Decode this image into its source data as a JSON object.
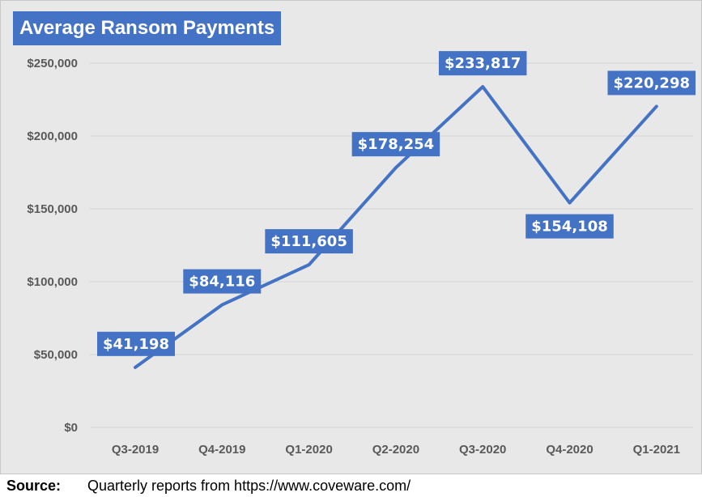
{
  "chart_data": {
    "type": "line",
    "title": "Average Ransom Payments",
    "categories": [
      "Q3-2019",
      "Q4-2019",
      "Q1-2020",
      "Q2-2020",
      "Q3-2020",
      "Q4-2020",
      "Q1-2021"
    ],
    "values": [
      41198,
      84116,
      111605,
      178254,
      233817,
      154108,
      220298
    ],
    "data_labels": [
      "$41,198",
      "$84,116",
      "$111,605",
      "$178,254",
      "$233,817",
      "$154,108",
      "$220,298"
    ],
    "y_ticks": [
      0,
      50000,
      100000,
      150000,
      200000,
      250000
    ],
    "y_tick_labels": [
      "$0",
      "$50,000",
      "$100,000",
      "$150,000",
      "$200,000",
      "$250,000"
    ],
    "ylim": [
      0,
      250000
    ],
    "xlabel": "",
    "ylabel": "",
    "grid": true,
    "legend": "none",
    "line_color": "#4472c4",
    "label_bg_color": "#4472c4"
  },
  "source": {
    "label": "Source:",
    "text": "Quarterly reports from https://www.coveware.com/"
  }
}
